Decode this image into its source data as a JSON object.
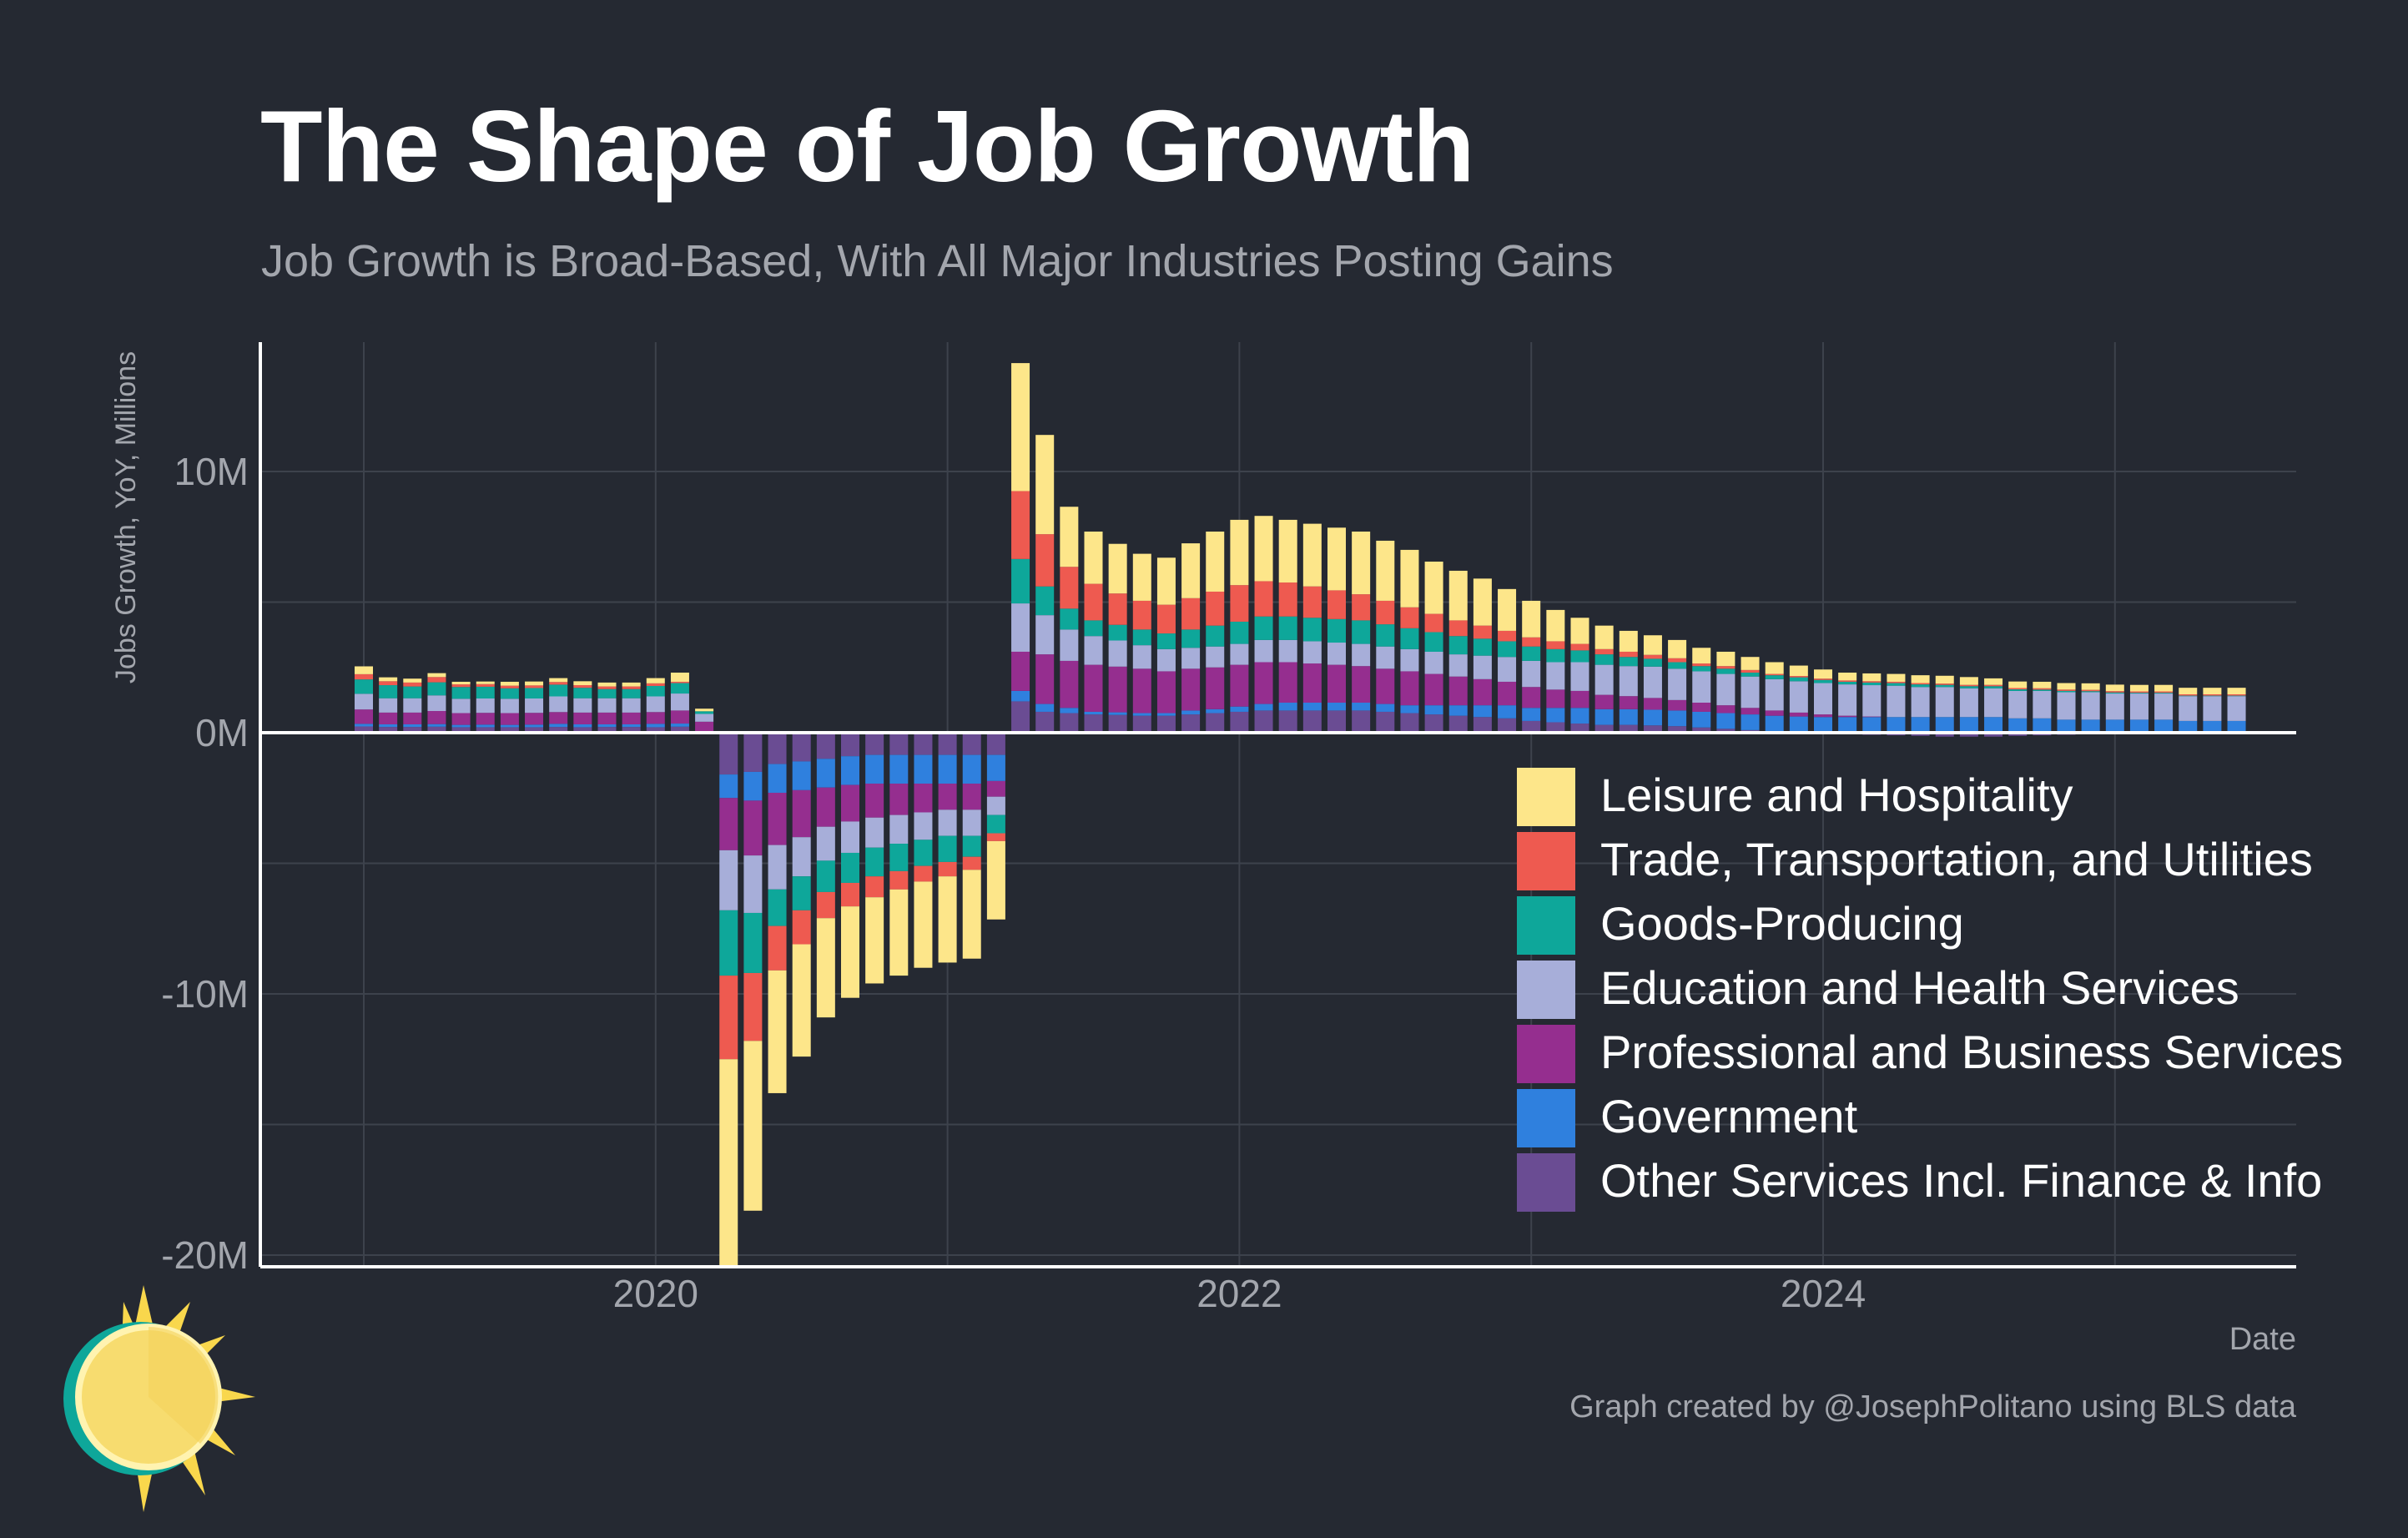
{
  "header": {
    "title": "The Shape of Job Growth",
    "subtitle": "Job Growth is Broad-Based, With All Major Industries Posting Gains"
  },
  "footer": {
    "x_axis_title": "Date",
    "credit": "Graph created by @JosephPolitano using BLS data"
  },
  "logo": {
    "icon": "sun-logo-icon"
  },
  "colors": {
    "background": "#252932",
    "grid": "#3d424c",
    "axis": "#ffffff",
    "tick_label": "#a3a6ad"
  },
  "chart_data": {
    "type": "bar",
    "stacked": true,
    "title": "The Shape of Job Growth",
    "subtitle": "Job Growth is Broad-Based, With All Major Industries Posting Gains",
    "xlabel": "Date",
    "ylabel": "Jobs Growth, YoY, Millions",
    "ylim": [
      -20.5,
      15
    ],
    "y_ticks": [
      -20,
      -10,
      0,
      10
    ],
    "y_tick_labels": [
      "-20M",
      "-10M",
      "0M",
      "10M"
    ],
    "x_ticks": [
      "2020-01",
      "2022-01",
      "2024-01"
    ],
    "x_tick_labels": [
      "2020",
      "2022",
      "2024"
    ],
    "grid": true,
    "legend_position": "bottom-right",
    "start_month": "2019-01",
    "end_month": "2025-04",
    "series": [
      {
        "name": "Other Services Incl. Finance & Info",
        "color": "#6a4c93",
        "values": [
          0.24,
          0.22,
          0.22,
          0.23,
          0.21,
          0.21,
          0.21,
          0.21,
          0.22,
          0.21,
          0.22,
          0.22,
          0.21,
          0.23,
          0.02,
          -1.6,
          -1.5,
          -1.2,
          -1.1,
          -1.0,
          -0.9,
          -0.85,
          -0.85,
          -0.85,
          -0.85,
          -0.85,
          -0.85,
          1.2,
          0.8,
          0.75,
          0.7,
          0.68,
          0.65,
          0.65,
          0.7,
          0.75,
          0.8,
          0.85,
          0.85,
          0.85,
          0.85,
          0.85,
          0.8,
          0.75,
          0.7,
          0.65,
          0.6,
          0.55,
          0.45,
          0.4,
          0.35,
          0.3,
          0.3,
          0.28,
          0.25,
          0.2,
          0.15,
          0.1,
          0.05,
          0.02,
          -0.02,
          -0.05,
          -0.08,
          -0.1,
          -0.12,
          -0.15,
          -0.15,
          -0.15,
          -0.12,
          -0.1,
          -0.08,
          -0.05,
          -0.03,
          -0.02,
          -0.02,
          0.0,
          0.0,
          0.0
        ]
      },
      {
        "name": "Government",
        "color": "#2f80de",
        "values": [
          0.1,
          0.1,
          0.1,
          0.1,
          0.09,
          0.1,
          0.09,
          0.1,
          0.12,
          0.11,
          0.1,
          0.1,
          0.13,
          0.12,
          -0.05,
          -0.9,
          -1.1,
          -1.1,
          -1.1,
          -1.1,
          -1.1,
          -1.1,
          -1.1,
          -1.1,
          -1.1,
          -1.1,
          -1.0,
          0.4,
          0.3,
          0.2,
          0.1,
          0.1,
          0.1,
          0.1,
          0.15,
          0.15,
          0.2,
          0.25,
          0.3,
          0.3,
          0.3,
          0.3,
          0.3,
          0.3,
          0.35,
          0.4,
          0.45,
          0.5,
          0.5,
          0.55,
          0.6,
          0.6,
          0.6,
          0.6,
          0.6,
          0.6,
          0.6,
          0.6,
          0.6,
          0.6,
          0.6,
          0.6,
          0.6,
          0.6,
          0.6,
          0.6,
          0.6,
          0.6,
          0.55,
          0.55,
          0.5,
          0.5,
          0.5,
          0.5,
          0.5,
          0.45,
          0.45,
          0.45
        ]
      },
      {
        "name": "Professional and Business Services",
        "color": "#952e8f",
        "values": [
          0.55,
          0.45,
          0.45,
          0.5,
          0.45,
          0.45,
          0.45,
          0.45,
          0.45,
          0.45,
          0.45,
          0.45,
          0.45,
          0.5,
          0.4,
          -2.0,
          -2.1,
          -2.0,
          -1.8,
          -1.5,
          -1.4,
          -1.3,
          -1.2,
          -1.1,
          -1.0,
          -1.0,
          -0.6,
          1.5,
          1.9,
          1.8,
          1.8,
          1.75,
          1.7,
          1.6,
          1.6,
          1.6,
          1.6,
          1.6,
          1.55,
          1.5,
          1.45,
          1.4,
          1.35,
          1.3,
          1.2,
          1.1,
          1.0,
          0.9,
          0.8,
          0.7,
          0.65,
          0.55,
          0.5,
          0.45,
          0.4,
          0.35,
          0.3,
          0.25,
          0.2,
          0.15,
          0.1,
          0.05,
          0.02,
          0.0,
          0.0,
          0.0,
          0.0,
          0.0,
          0.0,
          0.0,
          0.0,
          0.0,
          0.0,
          0.0,
          0.0,
          0.0,
          0.0,
          0.0
        ]
      },
      {
        "name": "Education and Health Services",
        "color": "#a7aed9",
        "values": [
          0.6,
          0.55,
          0.55,
          0.6,
          0.55,
          0.55,
          0.55,
          0.55,
          0.6,
          0.55,
          0.55,
          0.55,
          0.6,
          0.65,
          0.3,
          -2.3,
          -2.2,
          -1.7,
          -1.5,
          -1.3,
          -1.2,
          -1.15,
          -1.1,
          -1.05,
          -1.0,
          -1.0,
          -0.7,
          1.85,
          1.5,
          1.2,
          1.1,
          1.0,
          0.9,
          0.85,
          0.8,
          0.8,
          0.8,
          0.85,
          0.85,
          0.85,
          0.85,
          0.85,
          0.85,
          0.85,
          0.85,
          0.85,
          0.9,
          0.95,
          1.0,
          1.05,
          1.1,
          1.15,
          1.15,
          1.2,
          1.2,
          1.2,
          1.2,
          1.2,
          1.2,
          1.2,
          1.2,
          1.2,
          1.2,
          1.2,
          1.15,
          1.15,
          1.1,
          1.1,
          1.05,
          1.05,
          1.05,
          1.05,
          1.0,
          1.0,
          1.0,
          0.95,
          0.95,
          0.95
        ]
      },
      {
        "name": "Goods-Producing",
        "color": "#0ea79a",
        "values": [
          0.55,
          0.5,
          0.45,
          0.5,
          0.45,
          0.45,
          0.4,
          0.4,
          0.45,
          0.4,
          0.35,
          0.35,
          0.4,
          0.4,
          0.1,
          -2.5,
          -2.3,
          -1.4,
          -1.3,
          -1.2,
          -1.15,
          -1.1,
          -1.05,
          -1.0,
          -1.0,
          -0.8,
          -0.7,
          1.7,
          1.1,
          0.8,
          0.6,
          0.6,
          0.6,
          0.6,
          0.7,
          0.8,
          0.85,
          0.9,
          0.9,
          0.9,
          0.9,
          0.9,
          0.85,
          0.8,
          0.75,
          0.7,
          0.65,
          0.6,
          0.55,
          0.5,
          0.45,
          0.4,
          0.35,
          0.3,
          0.25,
          0.2,
          0.2,
          0.15,
          0.15,
          0.15,
          0.12,
          0.1,
          0.1,
          0.1,
          0.1,
          0.08,
          0.08,
          0.08,
          0.06,
          0.05,
          0.05,
          0.04,
          0.04,
          0.03,
          0.03,
          0.02,
          0.02,
          0.02
        ]
      },
      {
        "name": "Trade, Transportation, and Utilities",
        "color": "#ee5a50",
        "values": [
          0.2,
          0.15,
          0.15,
          0.2,
          0.1,
          0.1,
          0.1,
          0.1,
          0.1,
          0.1,
          0.1,
          0.1,
          0.1,
          0.05,
          0.0,
          -3.2,
          -2.6,
          -1.7,
          -1.3,
          -1.0,
          -0.9,
          -0.8,
          -0.7,
          -0.6,
          -0.55,
          -0.5,
          -0.3,
          2.6,
          2.0,
          1.6,
          1.4,
          1.2,
          1.1,
          1.1,
          1.2,
          1.3,
          1.4,
          1.35,
          1.3,
          1.2,
          1.1,
          1.0,
          0.9,
          0.8,
          0.7,
          0.6,
          0.5,
          0.4,
          0.35,
          0.3,
          0.25,
          0.2,
          0.2,
          0.15,
          0.15,
          0.1,
          0.1,
          0.1,
          0.05,
          0.05,
          0.05,
          0.05,
          0.05,
          0.05,
          0.05,
          0.05,
          0.05,
          0.05,
          0.05,
          0.05,
          0.05,
          0.05,
          0.05,
          0.05,
          0.05,
          0.05,
          0.05,
          0.05
        ]
      },
      {
        "name": "Leisure and Hospitality",
        "color": "#fde68a",
        "values": [
          0.3,
          0.15,
          0.15,
          0.15,
          0.1,
          0.1,
          0.15,
          0.15,
          0.15,
          0.15,
          0.15,
          0.15,
          0.2,
          0.35,
          0.1,
          -8.0,
          -6.5,
          -4.7,
          -4.3,
          -3.8,
          -3.5,
          -3.3,
          -3.3,
          -3.3,
          -3.3,
          -3.4,
          -3.0,
          4.9,
          3.8,
          2.3,
          2.0,
          1.9,
          1.8,
          1.8,
          2.1,
          2.3,
          2.5,
          2.5,
          2.4,
          2.4,
          2.4,
          2.4,
          2.3,
          2.2,
          2.0,
          1.9,
          1.8,
          1.6,
          1.4,
          1.2,
          1.0,
          0.9,
          0.8,
          0.75,
          0.7,
          0.6,
          0.55,
          0.5,
          0.45,
          0.4,
          0.35,
          0.3,
          0.3,
          0.3,
          0.3,
          0.3,
          0.3,
          0.25,
          0.25,
          0.25,
          0.25,
          0.25,
          0.25,
          0.25,
          0.25,
          0.25,
          0.25,
          0.25
        ]
      }
    ]
  }
}
